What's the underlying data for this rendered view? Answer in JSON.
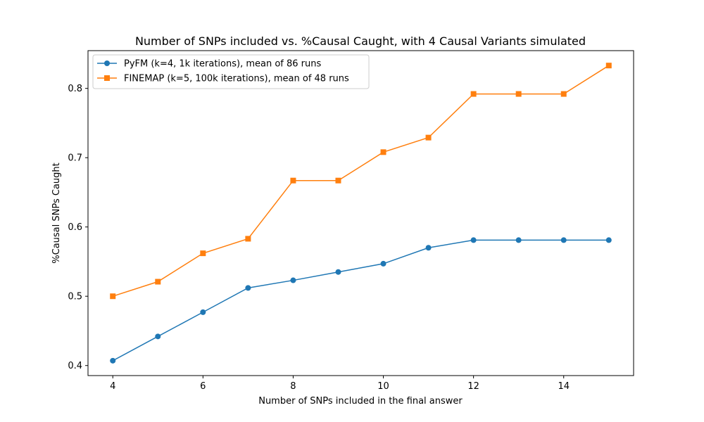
{
  "chart_data": {
    "type": "line",
    "title": "Number of SNPs included vs. %Causal Caught, with 4 Causal Variants simulated",
    "xlabel": "Number of SNPs included in the final answer",
    "ylabel": "%Causal SNPs Caught",
    "xlim": [
      3.45,
      15.55
    ],
    "ylim": [
      0.3855,
      0.8545
    ],
    "xticks": [
      4,
      6,
      8,
      10,
      12,
      14
    ],
    "yticks": [
      0.4,
      0.5,
      0.6,
      0.7,
      0.8
    ],
    "x": [
      4,
      5,
      6,
      7,
      8,
      9,
      10,
      11,
      12,
      13,
      14,
      15
    ],
    "grid": false,
    "legend_position": "top-left",
    "series": [
      {
        "name": "PyFM (k=4, 1k iterations), mean of 86 runs",
        "color": "#1f77b4",
        "marker": "circle",
        "values": [
          0.407,
          0.442,
          0.477,
          0.512,
          0.523,
          0.535,
          0.547,
          0.57,
          0.581,
          0.581,
          0.581,
          0.581
        ]
      },
      {
        "name": "FINEMAP (k=5, 100k iterations), mean of 48 runs",
        "color": "#ff7f0e",
        "marker": "square",
        "values": [
          0.5,
          0.521,
          0.562,
          0.583,
          0.667,
          0.667,
          0.708,
          0.729,
          0.792,
          0.792,
          0.792,
          0.833
        ]
      }
    ]
  }
}
